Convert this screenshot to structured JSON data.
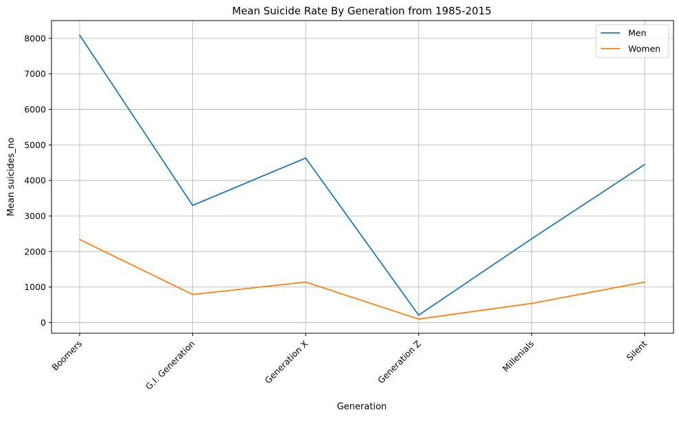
{
  "chart_data": {
    "type": "line",
    "title": "Mean Suicide Rate By Generation from 1985-2015",
    "xlabel": "Generation",
    "ylabel": "Mean suicides_no",
    "categories": [
      "Boomers",
      "G.I. Generation",
      "Generation X",
      "Generation Z",
      "Millenials",
      "Silent"
    ],
    "yticks": [
      "0",
      "1000",
      "2000",
      "3000",
      "4000",
      "5000",
      "6000",
      "7000",
      "8000"
    ],
    "ylim": [
      -300,
      8500
    ],
    "grid": true,
    "legend_position": "top-right",
    "series": [
      {
        "name": "Men",
        "color": "#1f77b4",
        "values": [
          8090,
          3300,
          4630,
          210,
          2360,
          4450
        ]
      },
      {
        "name": "Women",
        "color": "#ff7f0e",
        "values": [
          2340,
          790,
          1140,
          100,
          540,
          1140
        ]
      }
    ]
  }
}
